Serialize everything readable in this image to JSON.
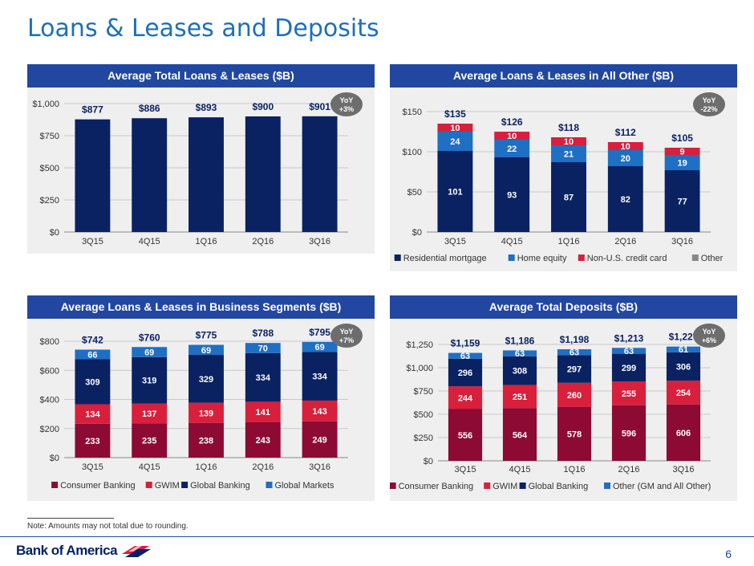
{
  "page": {
    "title": "Loans & Leases and Deposits",
    "note": "Note: Amounts may not total due to rounding.",
    "page_number": "6",
    "logo_text": "Bank of America"
  },
  "colors": {
    "navy": "#0a2262",
    "blue": "#1f6fc4",
    "red": "#d81f3c",
    "maroon": "#8c0a33",
    "grey": "#888888",
    "header": "#2147a0",
    "panel": "#efefef",
    "badge": "#6d6d6d"
  },
  "chart_data": [
    {
      "id": "total-loans",
      "type": "bar",
      "title": "Average Total Loans & Leases ($B)",
      "categories": [
        "3Q15",
        "4Q15",
        "1Q16",
        "2Q16",
        "3Q16"
      ],
      "series": [
        {
          "name": "",
          "values": [
            877,
            886,
            893,
            900,
            901
          ],
          "color": "#0a2262",
          "labelColor": "#0a2262"
        }
      ],
      "totals": [
        "$877",
        "$886",
        "$893",
        "$900",
        "$901"
      ],
      "yticks": [
        0,
        250,
        500,
        750,
        1000
      ],
      "ytick_labels": [
        "$0",
        "$250",
        "$500",
        "$750",
        "$1,000"
      ],
      "ylim": [
        0,
        1000
      ],
      "yoy": [
        "YoY",
        "+3%"
      ],
      "show_segment_labels": false,
      "legend": []
    },
    {
      "id": "all-other",
      "type": "bar",
      "stacked": true,
      "title": "Average Loans & Leases in All Other ($B)",
      "categories": [
        "3Q15",
        "4Q15",
        "1Q16",
        "2Q16",
        "3Q16"
      ],
      "series": [
        {
          "name": "Residential mortgage",
          "values": [
            101,
            93,
            87,
            82,
            77
          ],
          "color": "#0a2262",
          "labelColor": "#ffffff"
        },
        {
          "name": "Home equity",
          "values": [
            24,
            22,
            21,
            20,
            19
          ],
          "color": "#1f6fc4",
          "labelColor": "#ffffff"
        },
        {
          "name": "Non-U.S. credit card",
          "values": [
            10,
            10,
            10,
            10,
            9
          ],
          "color": "#d81f3c",
          "labelColor": "#ffffff"
        },
        {
          "name": "Other",
          "values": [
            0,
            0,
            0,
            0,
            0
          ],
          "color": "#888888",
          "labelColor": "#ffffff"
        }
      ],
      "totals": [
        "$135",
        "$126",
        "$118",
        "$112",
        "$105"
      ],
      "yticks": [
        0,
        50,
        100,
        150
      ],
      "ytick_labels": [
        "$0",
        "$50",
        "$100",
        "$150"
      ],
      "ylim": [
        0,
        150
      ],
      "yoy": [
        "YoY",
        "-22%"
      ],
      "show_segment_labels": true,
      "legend": [
        "Residential mortgage",
        "Home equity",
        "Non-U.S. credit card",
        "Other"
      ]
    },
    {
      "id": "business-segments",
      "type": "bar",
      "stacked": true,
      "title": "Average Loans & Leases in Business Segments ($B)",
      "categories": [
        "3Q15",
        "4Q15",
        "1Q16",
        "2Q16",
        "3Q16"
      ],
      "series": [
        {
          "name": "Consumer Banking",
          "values": [
            233,
            235,
            238,
            243,
            249
          ],
          "color": "#8c0a33",
          "labelColor": "#ffffff"
        },
        {
          "name": "GWIM",
          "values": [
            134,
            137,
            139,
            141,
            143
          ],
          "color": "#d81f3c",
          "labelColor": "#ffffff"
        },
        {
          "name": "Global Banking",
          "values": [
            309,
            319,
            329,
            334,
            334
          ],
          "color": "#0a2262",
          "labelColor": "#ffffff"
        },
        {
          "name": "Global Markets",
          "values": [
            66,
            69,
            69,
            70,
            69
          ],
          "color": "#1f6fc4",
          "labelColor": "#ffffff"
        }
      ],
      "totals": [
        "$742",
        "$760",
        "$775",
        "$788",
        "$795"
      ],
      "yticks": [
        0,
        200,
        400,
        600,
        800
      ],
      "ytick_labels": [
        "$0",
        "$200",
        "$400",
        "$600",
        "$800"
      ],
      "ylim": [
        0,
        800
      ],
      "yoy": [
        "YoY",
        "+7%"
      ],
      "show_segment_labels": true,
      "legend": [
        "Consumer Banking",
        "GWIM",
        "Global Banking",
        "Global Markets"
      ]
    },
    {
      "id": "total-deposits",
      "type": "bar",
      "stacked": true,
      "title": "Average Total Deposits ($B)",
      "categories": [
        "3Q15",
        "4Q15",
        "1Q16",
        "2Q16",
        "3Q16"
      ],
      "series": [
        {
          "name": "Consumer Banking",
          "values": [
            556,
            564,
            578,
            596,
            606
          ],
          "color": "#8c0a33",
          "labelColor": "#ffffff"
        },
        {
          "name": "GWIM",
          "values": [
            244,
            251,
            260,
            255,
            254
          ],
          "color": "#d81f3c",
          "labelColor": "#ffffff"
        },
        {
          "name": "Global Banking",
          "values": [
            296,
            308,
            297,
            299,
            306
          ],
          "color": "#0a2262",
          "labelColor": "#ffffff"
        },
        {
          "name": "Other (GM and All Other)",
          "values": [
            63,
            63,
            63,
            63,
            61
          ],
          "color": "#1f6fc4",
          "labelColor": "#ffffff"
        }
      ],
      "totals": [
        "$1,159",
        "$1,186",
        "$1,198",
        "$1,213",
        "$1,227"
      ],
      "yticks": [
        0,
        250,
        500,
        750,
        1000,
        1250
      ],
      "ytick_labels": [
        "$0",
        "$250",
        "$500",
        "$750",
        "$1,000",
        "$1,250"
      ],
      "ylim": [
        0,
        1250
      ],
      "yoy": [
        "YoY",
        "+6%"
      ],
      "show_segment_labels": true,
      "legend": [
        "Consumer Banking",
        "GWIM",
        "Global Banking",
        "Other (GM and All Other)"
      ]
    }
  ]
}
